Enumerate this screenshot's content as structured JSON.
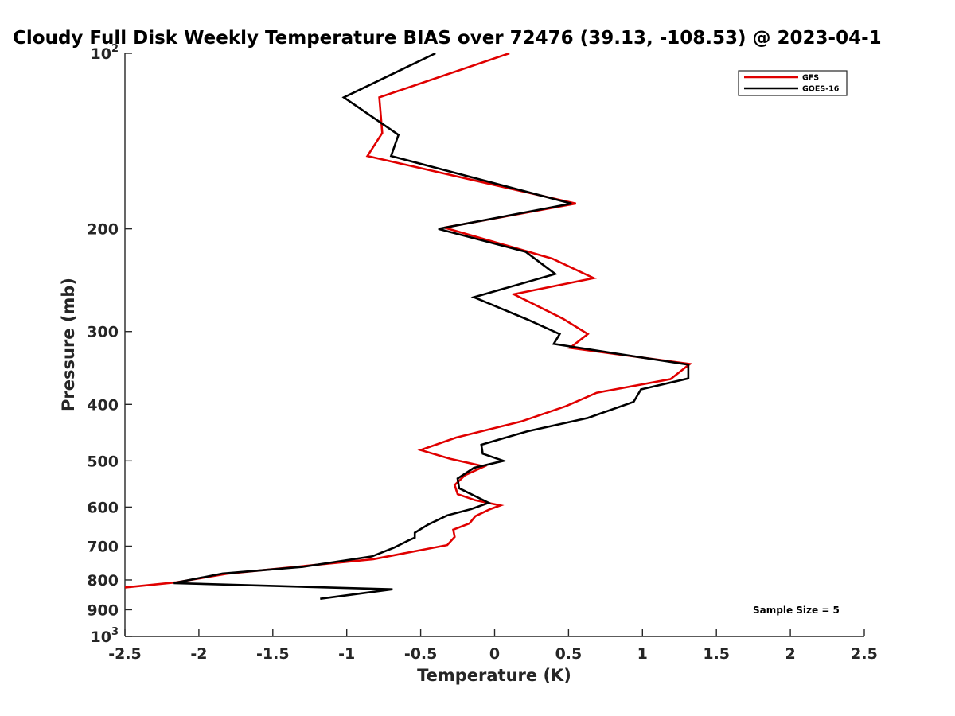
{
  "chart_data": {
    "type": "line",
    "title": "Cloudy Full Disk Weekly Temperature BIAS over 72476 (39.13, -108.53) @ 2023-04-1",
    "xlabel": "Temperature (K)",
    "ylabel": "Pressure (mb)",
    "xlim": [
      -2.5,
      2.5
    ],
    "ylim": [
      100,
      1000
    ],
    "y_scale": "log",
    "y_reversed": true,
    "grid": false,
    "legend_position": "top-right",
    "x_ticks": [
      "-2.5",
      "-2",
      "-1.5",
      "-1",
      "-0.5",
      "0",
      "0.5",
      "1",
      "1.5",
      "2",
      "2.5"
    ],
    "y_ticks": [
      {
        "value": 100,
        "base": "10",
        "exp": "2"
      },
      {
        "value": 200,
        "label": "200"
      },
      {
        "value": 300,
        "label": "300"
      },
      {
        "value": 400,
        "label": "400"
      },
      {
        "value": 500,
        "label": "500"
      },
      {
        "value": 600,
        "label": "600"
      },
      {
        "value": 700,
        "label": "700"
      },
      {
        "value": 800,
        "label": "800"
      },
      {
        "value": 900,
        "label": "900"
      },
      {
        "value": 1000,
        "base": "10",
        "exp": "3"
      }
    ],
    "annotation": "Sample Size = 5",
    "series": [
      {
        "name": "GFS",
        "color": "#e00000",
        "points": [
          [
            0.1,
            100
          ],
          [
            -0.78,
            119
          ],
          [
            -0.76,
            137
          ],
          [
            -0.86,
            150
          ],
          [
            0.55,
            181
          ],
          [
            -0.34,
            199
          ],
          [
            0.39,
            225
          ],
          [
            0.67,
            243
          ],
          [
            0.13,
            259
          ],
          [
            0.46,
            285
          ],
          [
            0.63,
            303
          ],
          [
            0.51,
            320
          ],
          [
            1.32,
            341
          ],
          [
            1.19,
            362
          ],
          [
            0.69,
            382
          ],
          [
            0.48,
            403
          ],
          [
            0.18,
            428
          ],
          [
            -0.26,
            456
          ],
          [
            -0.5,
            479
          ],
          [
            -0.3,
            496
          ],
          [
            -0.07,
            511
          ],
          [
            -0.2,
            529
          ],
          [
            -0.27,
            550
          ],
          [
            -0.25,
            570
          ],
          [
            -0.13,
            584
          ],
          [
            0.04,
            596
          ],
          [
            -0.03,
            605
          ],
          [
            -0.13,
            622
          ],
          [
            -0.17,
            640
          ],
          [
            -0.28,
            656
          ],
          [
            -0.27,
            675
          ],
          [
            -0.32,
            697
          ],
          [
            -0.82,
            737
          ],
          [
            -1.8,
            780
          ],
          [
            -2.16,
            808
          ],
          [
            -2.5,
            824
          ]
        ]
      },
      {
        "name": "GOES-16",
        "color": "#000000",
        "points": [
          [
            -0.4,
            100
          ],
          [
            -1.02,
            119
          ],
          [
            -0.65,
            138
          ],
          [
            -0.7,
            150
          ],
          [
            0.52,
            181
          ],
          [
            -0.38,
            200
          ],
          [
            0.21,
            219
          ],
          [
            0.41,
            239
          ],
          [
            -0.14,
            262
          ],
          [
            0.22,
            286
          ],
          [
            0.44,
            303
          ],
          [
            0.4,
            315
          ],
          [
            1.31,
            342
          ],
          [
            1.31,
            361
          ],
          [
            0.99,
            377
          ],
          [
            0.94,
            396
          ],
          [
            0.63,
            422
          ],
          [
            0.22,
            445
          ],
          [
            -0.09,
            469
          ],
          [
            -0.08,
            486
          ],
          [
            0.06,
            500
          ],
          [
            -0.14,
            514
          ],
          [
            -0.25,
            536
          ],
          [
            -0.24,
            557
          ],
          [
            -0.04,
            590
          ],
          [
            -0.16,
            605
          ],
          [
            -0.32,
            620
          ],
          [
            -0.45,
            643
          ],
          [
            -0.54,
            664
          ],
          [
            -0.54,
            677
          ],
          [
            -0.58,
            684
          ],
          [
            -0.68,
            704
          ],
          [
            -0.83,
            729
          ],
          [
            -1.3,
            760
          ],
          [
            -1.84,
            780
          ],
          [
            -2.17,
            810
          ],
          [
            -0.69,
            830
          ],
          [
            -1.18,
            862
          ]
        ]
      }
    ]
  }
}
